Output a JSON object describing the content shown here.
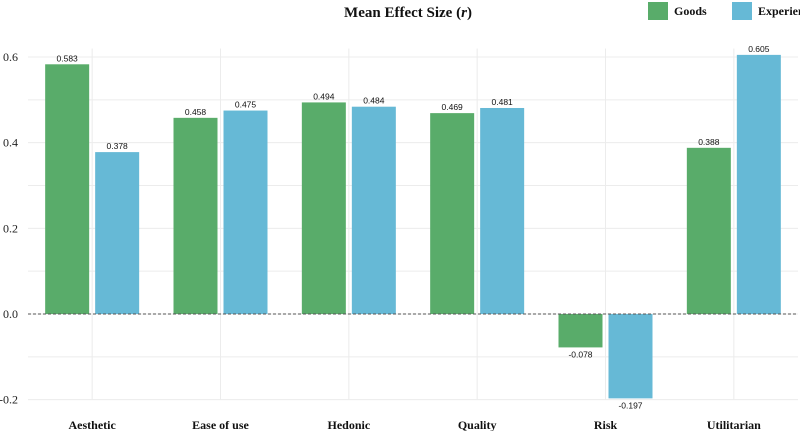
{
  "chart_data": {
    "type": "bar",
    "title": "Mean Effect Size (r)",
    "title_main": "Mean Effect Size (",
    "title_italic": "r",
    "title_end": ")",
    "categories": [
      "Aesthetic",
      "Ease of use",
      "Hedonic",
      "Quality",
      "Risk",
      "Utilitarian"
    ],
    "series": [
      {
        "name": "Goods",
        "color": "#59ac6a",
        "values": [
          0.583,
          0.458,
          0.494,
          0.469,
          -0.078,
          0.388
        ]
      },
      {
        "name": "Experience",
        "color": "#66b9d6",
        "values": [
          0.378,
          0.475,
          0.484,
          0.481,
          -0.197,
          0.605
        ]
      }
    ],
    "ylim": [
      -0.2,
      0.62
    ],
    "yticks": [
      "-0.2",
      "0.0",
      "0.2",
      "0.4",
      "0.6"
    ],
    "legend": "top-right",
    "grid": true
  }
}
